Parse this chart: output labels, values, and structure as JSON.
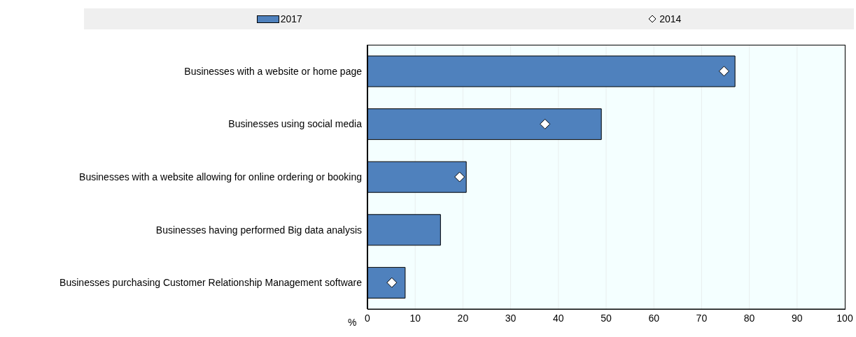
{
  "chart_data": {
    "type": "bar",
    "orientation": "horizontal",
    "xlabel": "%",
    "categories": [
      "Businesses with a website or home page",
      "Businesses using social media",
      "Businesses with a website allowing for online ordering or booking",
      "Businesses having performed Big data analysis",
      "Businesses purchasing Customer Relationship Management software"
    ],
    "series": [
      {
        "name": "2017",
        "type": "bar",
        "color": "#4f81bd",
        "values": [
          77,
          49,
          20.7,
          15.3,
          7.9
        ]
      },
      {
        "name": "2014",
        "type": "scatter",
        "marker": "diamond",
        "color": "#ffffff",
        "values": [
          74.7,
          37.2,
          19.3,
          null,
          5.1
        ]
      }
    ],
    "xlim": [
      0,
      100
    ],
    "xticks": [
      0,
      10,
      20,
      30,
      40,
      50,
      60,
      70,
      80,
      90,
      100
    ],
    "grid": "x",
    "legend": "top"
  }
}
